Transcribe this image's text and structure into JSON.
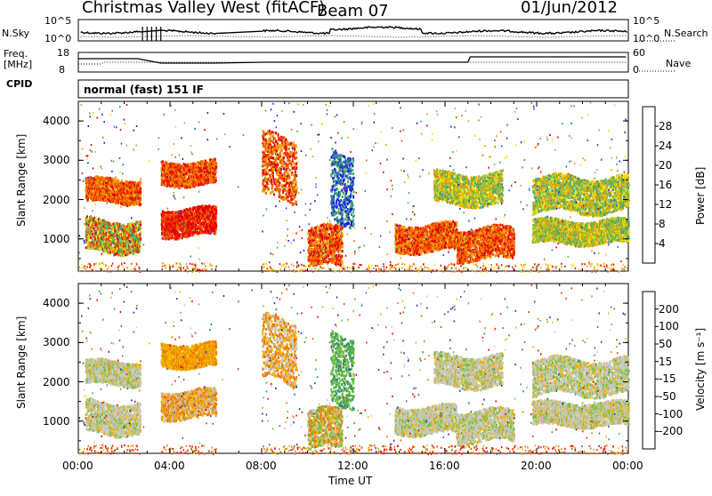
{
  "header": {
    "title": "Christmas Valley West (fitACF)",
    "beam": "Beam 07",
    "date": "01/Jun/2012"
  },
  "aux": {
    "nsky_label": "N.Sky",
    "nsearch_label": "N.Search",
    "freq_label_line1": "Freq.",
    "freq_label_line2": "[MHz]",
    "nave_label": "Nave",
    "cpid_label": "CPID",
    "cpid_value": "normal (fast) 151 IF",
    "noise_ticks": [
      "10^5",
      "10^0"
    ],
    "freq_ticks": [
      "18",
      "8"
    ],
    "nave_ticks": [
      "60",
      "0"
    ]
  },
  "chart_data": [
    {
      "type": "heatmap",
      "title": "",
      "xlabel": "",
      "ylabel": "Slant Range [km]",
      "colorbar_label": "Power [dB]",
      "colorbar_ticks": [
        "4",
        "8",
        "12",
        "16",
        "20",
        "24",
        "28"
      ],
      "colorbar_colors": [
        "#1515e6",
        "#1b4fb8",
        "#3a8a9a",
        "#46a36a",
        "#7fc050",
        "#f0e000",
        "#f0a000",
        "#f06000",
        "#e60000"
      ],
      "ylim": [
        180,
        4500
      ],
      "yticks": [
        "1000",
        "2000",
        "3000",
        "4000"
      ],
      "xlim": [
        "00:00",
        "24:00"
      ],
      "xticks": [
        "00:00",
        "04:00",
        "08:00",
        "12:00",
        "16:00",
        "20:00",
        "00:00"
      ],
      "echo_regions": [
        {
          "t": [
            0.3,
            2.7
          ],
          "r": [
            1950,
            2550
          ],
          "level": "red-orange"
        },
        {
          "t": [
            0.3,
            2.7
          ],
          "r": [
            700,
            1500
          ],
          "level": "red-green"
        },
        {
          "t": [
            3.6,
            6.0
          ],
          "r": [
            2400,
            3000
          ],
          "level": "red-orange"
        },
        {
          "t": [
            3.6,
            6.0
          ],
          "r": [
            1100,
            1800
          ],
          "level": "red"
        },
        {
          "t": [
            8.0,
            9.5
          ],
          "r": [
            2000,
            3600
          ],
          "level": "red-orange"
        },
        {
          "t": [
            10.0,
            11.5
          ],
          "r": [
            300,
            1300
          ],
          "level": "red-orange"
        },
        {
          "t": [
            11.0,
            12.0
          ],
          "r": [
            1500,
            3300
          ],
          "level": "blue-green"
        },
        {
          "t": [
            13.8,
            16.5
          ],
          "r": [
            700,
            1400
          ],
          "level": "red-orange"
        },
        {
          "t": [
            15.5,
            18.5
          ],
          "r": [
            1900,
            2700
          ],
          "level": "orange-green"
        },
        {
          "t": [
            16.5,
            19.0
          ],
          "r": [
            500,
            1300
          ],
          "level": "red-orange"
        },
        {
          "t": [
            19.8,
            24.0
          ],
          "r": [
            1700,
            2600
          ],
          "level": "orange-green"
        },
        {
          "t": [
            19.8,
            24.0
          ],
          "r": [
            900,
            1500
          ],
          "level": "orange-green"
        }
      ]
    },
    {
      "type": "heatmap",
      "title": "",
      "xlabel": "Time UT",
      "ylabel": "Slant Range [km]",
      "colorbar_label": "Velocity [m s⁻¹]",
      "colorbar_ticks": [
        "200",
        "100",
        "50",
        "15",
        "-15",
        "-50",
        "-100",
        "-200"
      ],
      "colorbar_colors": [
        "#1a2fb5",
        "#2a6aa0",
        "#3c8f6a",
        "#6ac040",
        "#c8c8c0",
        "#f0b000",
        "#f07000",
        "#f03000",
        "#e00000"
      ],
      "ylim": [
        180,
        4500
      ],
      "yticks": [
        "1000",
        "2000",
        "3000",
        "4000"
      ],
      "xlim": [
        "00:00",
        "24:00"
      ],
      "xticks": [
        "00:00",
        "04:00",
        "08:00",
        "12:00",
        "16:00",
        "20:00",
        "00:00"
      ],
      "echo_regions": [
        {
          "t": [
            0.3,
            2.7
          ],
          "r": [
            1950,
            2550
          ],
          "level": "grey"
        },
        {
          "t": [
            0.3,
            2.7
          ],
          "r": [
            700,
            1500
          ],
          "level": "grey"
        },
        {
          "t": [
            3.6,
            6.0
          ],
          "r": [
            2400,
            3000
          ],
          "level": "orange"
        },
        {
          "t": [
            3.6,
            6.0
          ],
          "r": [
            1100,
            1800
          ],
          "level": "orange-grey"
        },
        {
          "t": [
            8.0,
            9.5
          ],
          "r": [
            2000,
            3600
          ],
          "level": "orange-grey"
        },
        {
          "t": [
            10.0,
            11.5
          ],
          "r": [
            300,
            1300
          ],
          "level": "green-orange"
        },
        {
          "t": [
            11.0,
            12.0
          ],
          "r": [
            1500,
            3300
          ],
          "level": "green"
        },
        {
          "t": [
            13.8,
            16.5
          ],
          "r": [
            700,
            1400
          ],
          "level": "grey"
        },
        {
          "t": [
            15.5,
            18.5
          ],
          "r": [
            1900,
            2700
          ],
          "level": "grey"
        },
        {
          "t": [
            16.5,
            19.0
          ],
          "r": [
            500,
            1300
          ],
          "level": "grey"
        },
        {
          "t": [
            19.8,
            24.0
          ],
          "r": [
            1700,
            2600
          ],
          "level": "grey"
        },
        {
          "t": [
            19.8,
            24.0
          ],
          "r": [
            900,
            1500
          ],
          "level": "grey"
        }
      ]
    }
  ]
}
